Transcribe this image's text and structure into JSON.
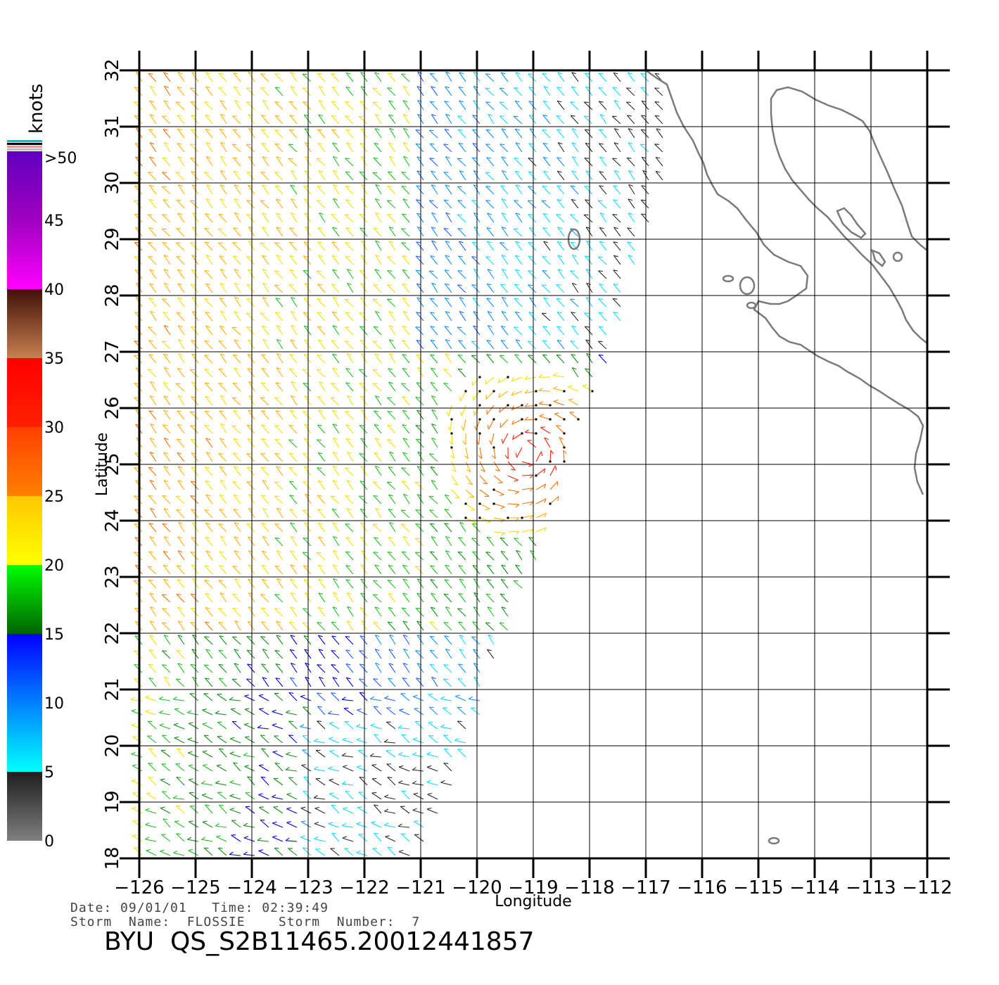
{
  "chart_data": {
    "type": "wind-vector-map",
    "xlabel": "Longitude",
    "ylabel": "Latitude",
    "xlim": [
      -126,
      -112
    ],
    "ylim": [
      18,
      32
    ],
    "x_ticks": [
      "-126",
      "-125",
      "-124",
      "-123",
      "-122",
      "-121",
      "-120",
      "-119",
      "-118",
      "-117",
      "-116",
      "-115",
      "-114",
      "-113",
      "-112"
    ],
    "y_ticks": [
      "18",
      "19",
      "20",
      "21",
      "22",
      "23",
      "24",
      "25",
      "26",
      "27",
      "28",
      "29",
      "30",
      "31",
      "32"
    ],
    "grid": true,
    "colorbar": {
      "unit_label": "knots",
      "ticks": [
        "0",
        "5",
        "10",
        "15",
        "20",
        "25",
        "30",
        "35",
        "40",
        "45",
        ">50"
      ],
      "stops": [
        {
          "value": 0,
          "color": "#7f7f7f"
        },
        {
          "value": 5,
          "color": "#1e1e1e"
        },
        {
          "value": 5,
          "color": "#00ffff"
        },
        {
          "value": 10,
          "color": "#0080ff"
        },
        {
          "value": 15,
          "color": "#0000ff"
        },
        {
          "value": 15,
          "color": "#006400"
        },
        {
          "value": 20,
          "color": "#00ff00"
        },
        {
          "value": 20,
          "color": "#ffff00"
        },
        {
          "value": 25,
          "color": "#ffc800"
        },
        {
          "value": 25,
          "color": "#ff8000"
        },
        {
          "value": 30,
          "color": "#ff4000"
        },
        {
          "value": 30,
          "color": "#ff2000"
        },
        {
          "value": 35,
          "color": "#ff0000"
        },
        {
          "value": 35,
          "color": "#c88050"
        },
        {
          "value": 40,
          "color": "#401008"
        },
        {
          "value": 40,
          "color": "#ff00ff"
        },
        {
          "value": 45,
          "color": "#a000c0"
        },
        {
          "value": 50,
          "color": "#6000c0"
        }
      ]
    },
    "swath_edges": [
      {
        "lon": -126.0,
        "lat": 18.0
      },
      {
        "lon": -126.0,
        "lat": 32.0
      },
      {
        "lon": -116.7,
        "lat": 32.0
      },
      {
        "lon": -116.5,
        "lat": 30.5
      },
      {
        "lon": -117.1,
        "lat": 28.8
      },
      {
        "lon": -117.7,
        "lat": 26.6
      },
      {
        "lon": -118.3,
        "lat": 25.4
      },
      {
        "lon": -118.8,
        "lat": 24.0
      },
      {
        "lon": -119.0,
        "lat": 23.0
      },
      {
        "lon": -119.7,
        "lat": 21.5
      },
      {
        "lon": -120.0,
        "lat": 20.3
      },
      {
        "lon": -120.3,
        "lat": 19.5
      },
      {
        "lon": -121.0,
        "lat": 18.0
      }
    ],
    "storm_center": {
      "lon": -119.1,
      "lat": 25.2
    }
  },
  "info": {
    "date_line": "Date: 09/01/01   Time: 02:39:49",
    "storm_line": "Storm  Name:  FLOSSIE    Storm  Number:  7",
    "title": "BYU  QS_S2B11465.20012441857"
  }
}
